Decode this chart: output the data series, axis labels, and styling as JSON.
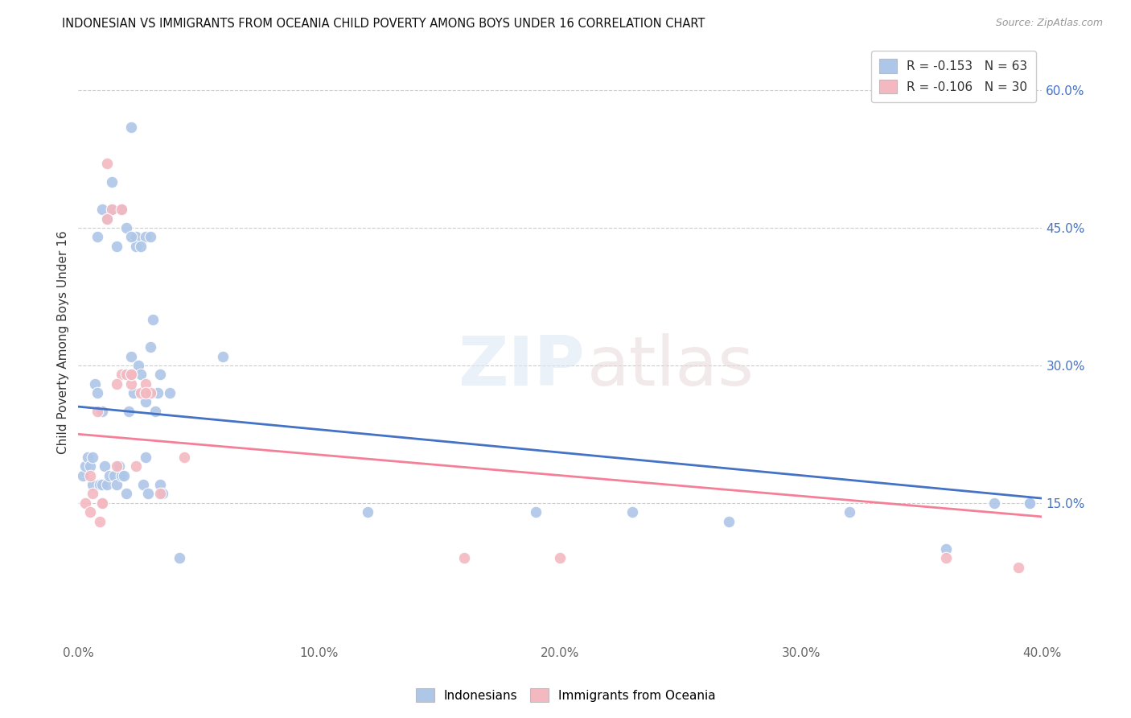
{
  "title": "INDONESIAN VS IMMIGRANTS FROM OCEANIA CHILD POVERTY AMONG BOYS UNDER 16 CORRELATION CHART",
  "source": "Source: ZipAtlas.com",
  "ylabel": "Child Poverty Among Boys Under 16",
  "xlim": [
    0.0,
    0.4
  ],
  "ylim": [
    0.0,
    0.65
  ],
  "xticks": [
    0.0,
    0.1,
    0.2,
    0.3,
    0.4
  ],
  "yticks": [
    0.15,
    0.3,
    0.45,
    0.6
  ],
  "ytick_labels": [
    "15.0%",
    "30.0%",
    "45.0%",
    "60.0%"
  ],
  "xtick_labels": [
    "0.0%",
    "10.0%",
    "20.0%",
    "30.0%",
    "40.0%"
  ],
  "legend_r1": "-0.153",
  "legend_n1": "63",
  "legend_r2": "-0.106",
  "legend_n2": "30",
  "color_blue": "#aec6e8",
  "color_pink": "#f4b8c1",
  "line_blue": "#4472c4",
  "line_pink": "#f48098",
  "indonesians_x": [
    0.002,
    0.003,
    0.004,
    0.005,
    0.006,
    0.006,
    0.007,
    0.008,
    0.009,
    0.01,
    0.01,
    0.011,
    0.012,
    0.013,
    0.014,
    0.015,
    0.016,
    0.017,
    0.018,
    0.019,
    0.02,
    0.021,
    0.022,
    0.023,
    0.024,
    0.025,
    0.026,
    0.027,
    0.028,
    0.029,
    0.03,
    0.031,
    0.032,
    0.033,
    0.034,
    0.008,
    0.012,
    0.016,
    0.02,
    0.024,
    0.028,
    0.01,
    0.014,
    0.018,
    0.022,
    0.026,
    0.03,
    0.034,
    0.038,
    0.022,
    0.028,
    0.035,
    0.042,
    0.06,
    0.12,
    0.19,
    0.23,
    0.27,
    0.32,
    0.36,
    0.38,
    0.395,
    0.395
  ],
  "indonesians_y": [
    0.18,
    0.19,
    0.2,
    0.19,
    0.17,
    0.2,
    0.28,
    0.27,
    0.17,
    0.17,
    0.25,
    0.19,
    0.17,
    0.18,
    0.47,
    0.18,
    0.17,
    0.19,
    0.18,
    0.18,
    0.16,
    0.25,
    0.31,
    0.27,
    0.44,
    0.3,
    0.29,
    0.17,
    0.26,
    0.16,
    0.32,
    0.35,
    0.25,
    0.27,
    0.17,
    0.44,
    0.46,
    0.43,
    0.45,
    0.43,
    0.44,
    0.47,
    0.5,
    0.47,
    0.44,
    0.43,
    0.44,
    0.29,
    0.27,
    0.56,
    0.2,
    0.16,
    0.09,
    0.31,
    0.14,
    0.14,
    0.14,
    0.13,
    0.14,
    0.1,
    0.15,
    0.15,
    0.15
  ],
  "oceania_x": [
    0.003,
    0.005,
    0.006,
    0.008,
    0.009,
    0.01,
    0.012,
    0.014,
    0.016,
    0.018,
    0.02,
    0.022,
    0.024,
    0.026,
    0.028,
    0.03,
    0.012,
    0.018,
    0.022,
    0.028,
    0.034,
    0.044,
    0.16,
    0.2,
    0.36,
    0.39,
    0.005,
    0.01,
    0.016,
    0.022
  ],
  "oceania_y": [
    0.15,
    0.14,
    0.16,
    0.25,
    0.13,
    0.15,
    0.52,
    0.47,
    0.19,
    0.29,
    0.29,
    0.28,
    0.19,
    0.27,
    0.28,
    0.27,
    0.46,
    0.47,
    0.29,
    0.27,
    0.16,
    0.2,
    0.09,
    0.09,
    0.09,
    0.08,
    0.18,
    0.15,
    0.28,
    0.29
  ],
  "trendline_blue_x0": 0.0,
  "trendline_blue_y0": 0.255,
  "trendline_blue_x1": 0.4,
  "trendline_blue_y1": 0.155,
  "trendline_pink_x0": 0.0,
  "trendline_pink_y0": 0.225,
  "trendline_pink_x1": 0.4,
  "trendline_pink_y1": 0.135
}
